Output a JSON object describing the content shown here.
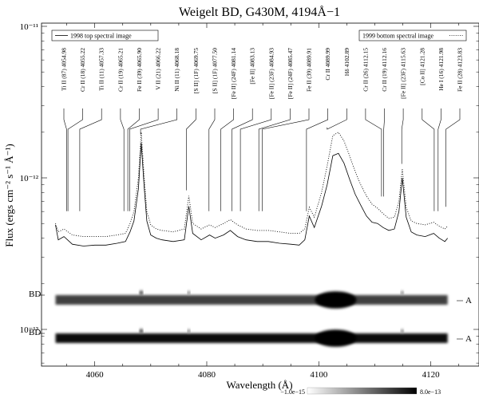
{
  "chart_data": {
    "type": "line",
    "title": "Weigelt BD, G430M, 4194Å−1",
    "xlabel": "Wavelength (Å)",
    "ylabel": "Flux (ergs cm⁻² s⁻¹ Å⁻¹)",
    "xlim": [
      4050,
      4125
    ],
    "ylim": [
      1e-14,
      1e-11
    ],
    "yscale": "log",
    "x_ticks": [
      "4060",
      "4080",
      "4100",
      "4120"
    ],
    "y_ticks": [
      "10⁻¹¹",
      "10⁻¹²",
      "10⁻¹³"
    ],
    "legend": {
      "left": "1998 top spectral image",
      "right": "1999 bottom spectral image"
    },
    "series": [
      {
        "name": "1998 top spectral image",
        "style": "solid",
        "x": [
          4053.0,
          4053.5,
          4054.5,
          4056,
          4058,
          4060,
          4062,
          4064,
          4065.5,
          4066.3,
          4067,
          4067.8,
          4068.3,
          4068.8,
          4069.3,
          4070,
          4071,
          4072,
          4074,
          4076,
          4076.8,
          4077.5,
          4079,
          4080.5,
          4081.5,
          4083,
          4084.2,
          4085.5,
          4087,
          4089,
          4091,
          4093,
          4095,
          4096.5,
          4097.5,
          4098.3,
          4099.2,
          4100.5,
          4101.5,
          4102.5,
          4103.5,
          4104.5,
          4105.5,
          4106.5,
          4107.5,
          4108.5,
          4109.5,
          4110.5,
          4111.5,
          4112.5,
          4113.5,
          4114.3,
          4114.9,
          4115.6,
          4116.5,
          4117.5,
          4119,
          4120.5,
          4121.5,
          4122.5,
          4123.0
        ],
        "y": [
          4.9e-13,
          3.9e-13,
          4.1e-13,
          3.65e-13,
          3.55e-13,
          3.6e-13,
          3.6e-13,
          3.7e-13,
          3.8e-13,
          4.4e-13,
          5.2e-13,
          8.5e-13,
          1.7e-12,
          9e-13,
          5.2e-13,
          4.2e-13,
          4e-13,
          3.9e-13,
          3.8e-13,
          3.9e-13,
          6.5e-13,
          4.3e-13,
          3.9e-13,
          4.2e-13,
          4e-13,
          4.2e-13,
          4.5e-13,
          4.1e-13,
          3.9e-13,
          3.8e-13,
          3.8e-13,
          3.7e-13,
          3.65e-13,
          3.6e-13,
          3.9e-13,
          5.6e-13,
          4.7e-13,
          6.5e-13,
          9e-13,
          1.4e-12,
          1.45e-12,
          1.25e-12,
          9.8e-13,
          7.8e-13,
          6.6e-13,
          5.6e-13,
          5.1e-13,
          5e-13,
          4.7e-13,
          4.5e-13,
          4.6e-13,
          6e-13,
          1e-12,
          5.5e-13,
          4.4e-13,
          4.2e-13,
          4.1e-13,
          4.3e-13,
          4e-13,
          3.8e-13,
          4e-13
        ]
      },
      {
        "name": "1999 bottom spectral image",
        "style": "dotted",
        "x": [
          4053.0,
          4053.5,
          4054.5,
          4056,
          4058,
          4060,
          4062,
          4064,
          4065.5,
          4066.3,
          4067,
          4067.8,
          4068.3,
          4068.8,
          4069.3,
          4070,
          4071,
          4072,
          4074,
          4076,
          4076.8,
          4077.5,
          4079,
          4080.5,
          4081.5,
          4083,
          4084.2,
          4085.5,
          4087,
          4089,
          4091,
          4093,
          4095,
          4096.5,
          4097.5,
          4098.3,
          4099.2,
          4100.5,
          4101.5,
          4102.5,
          4103.5,
          4104.5,
          4105.5,
          4106.5,
          4107.5,
          4108.5,
          4109.5,
          4110.5,
          4111.5,
          4112.5,
          4113.5,
          4114.3,
          4114.9,
          4115.6,
          4116.5,
          4117.5,
          4119,
          4120.5,
          4121.5,
          4122.5,
          4123.0
        ],
        "y": [
          5e-13,
          4.4e-13,
          4.6e-13,
          4.2e-13,
          4.1e-13,
          4.1e-13,
          4.1e-13,
          4.2e-13,
          4.3e-13,
          5e-13,
          6e-13,
          1e-12,
          2e-12,
          1.05e-12,
          6e-13,
          4.9e-13,
          4.6e-13,
          4.5e-13,
          4.4e-13,
          4.6e-13,
          7.6e-13,
          5e-13,
          4.6e-13,
          4.9e-13,
          4.7e-13,
          5e-13,
          5.3e-13,
          4.9e-13,
          4.6e-13,
          4.5e-13,
          4.5e-13,
          4.4e-13,
          4.3e-13,
          4.3e-13,
          4.6e-13,
          6.4e-13,
          5.5e-13,
          8e-13,
          1.2e-12,
          1.9e-12,
          2e-12,
          1.75e-12,
          1.4e-12,
          1.1e-12,
          9e-13,
          7.6e-13,
          6.7e-13,
          6.3e-13,
          5.8e-13,
          5.4e-13,
          5.5e-13,
          7e-13,
          1.15e-12,
          6.4e-13,
          5.2e-13,
          5e-13,
          4.9e-13,
          5.1e-13,
          4.8e-13,
          4.6e-13,
          4.8e-13
        ]
      }
    ],
    "line_ids": [
      {
        "label": "Ti II  (87) 4054.98",
        "wave": 4054.98,
        "flux": 5.6e-13
      },
      {
        "label": "Cr II  (18) 4055.22",
        "wave": 4055.22,
        "flux": 5.6e-13
      },
      {
        "label": "Ti II  (11) 4057.33",
        "wave": 4057.33,
        "flux": 5.6e-13
      },
      {
        "label": "Cr II  (19) 4065.21",
        "wave": 4065.21,
        "flux": 5.6e-13
      },
      {
        "label": "Fe II  (39) 4065.90",
        "wave": 4065.9,
        "flux": 5.6e-13
      },
      {
        "label": "V II  (21) 4066.22",
        "wave": 4066.22,
        "flux": 5.6e-13
      },
      {
        "label": "Ni II  (11) 4068.18",
        "wave": 4068.18,
        "flux": 1.8e-12
      },
      {
        "label": "[S II]  (1F) 4069.75",
        "wave": 4076.35,
        "flux": 7.7e-13
      },
      {
        "label": "[S II]  (1F) 4077.50",
        "wave": 4080.4,
        "flux": 5.6e-13
      },
      {
        "label": "[Fe II]  (24F) 4081.14",
        "wave": 4082.5,
        "flux": 5.6e-13
      },
      {
        "label": "[Fe II]  4083.13",
        "wave": 4084.5,
        "flux": 5.6e-13
      },
      {
        "label": "[Fe II]  (23F) 4084.93",
        "wave": 4086.0,
        "flux": 5.6e-13
      },
      {
        "label": "[Fe II]  (24F) 4085.47",
        "wave": 4089.3,
        "flux": 5.6e-13
      },
      {
        "label": "Fe II  (39) 4089.91",
        "wave": 4089.91,
        "flux": 5.6e-13
      },
      {
        "label": "Cr II  4089.99",
        "wave": 4097.8,
        "flux": 5.6e-13
      },
      {
        "label": "Hδ 4102.89",
        "wave": 4101.5,
        "flux": 2e-12
      },
      {
        "label": "Cr II  (26) 4112.15",
        "wave": 4111.2,
        "flux": 7e-13
      },
      {
        "label": "Cr II  (19) 4112.16",
        "wave": 4111.6,
        "flux": 7e-13
      },
      {
        "label": "[Fe II]  (23F) 4115.63",
        "wave": 4114.8,
        "flux": 1.15e-12
      },
      {
        "label": "[Co II]  4121.28",
        "wave": 4120.6,
        "flux": 5.6e-13
      },
      {
        "label": "He I  (16) 4121.98",
        "wave": 4121.3,
        "flux": 5.6e-13
      },
      {
        "label": "Fe II  (28) 4123.83",
        "wave": 4122.7,
        "flux": 6e-13
      }
    ],
    "spectral_images": [
      {
        "left_label": "BD",
        "right_label": "A"
      },
      {
        "left_label": "BD",
        "right_label": "A"
      }
    ],
    "colorbar": {
      "min_label": "−1.0e−15",
      "max_label": "8.0e−13"
    }
  }
}
